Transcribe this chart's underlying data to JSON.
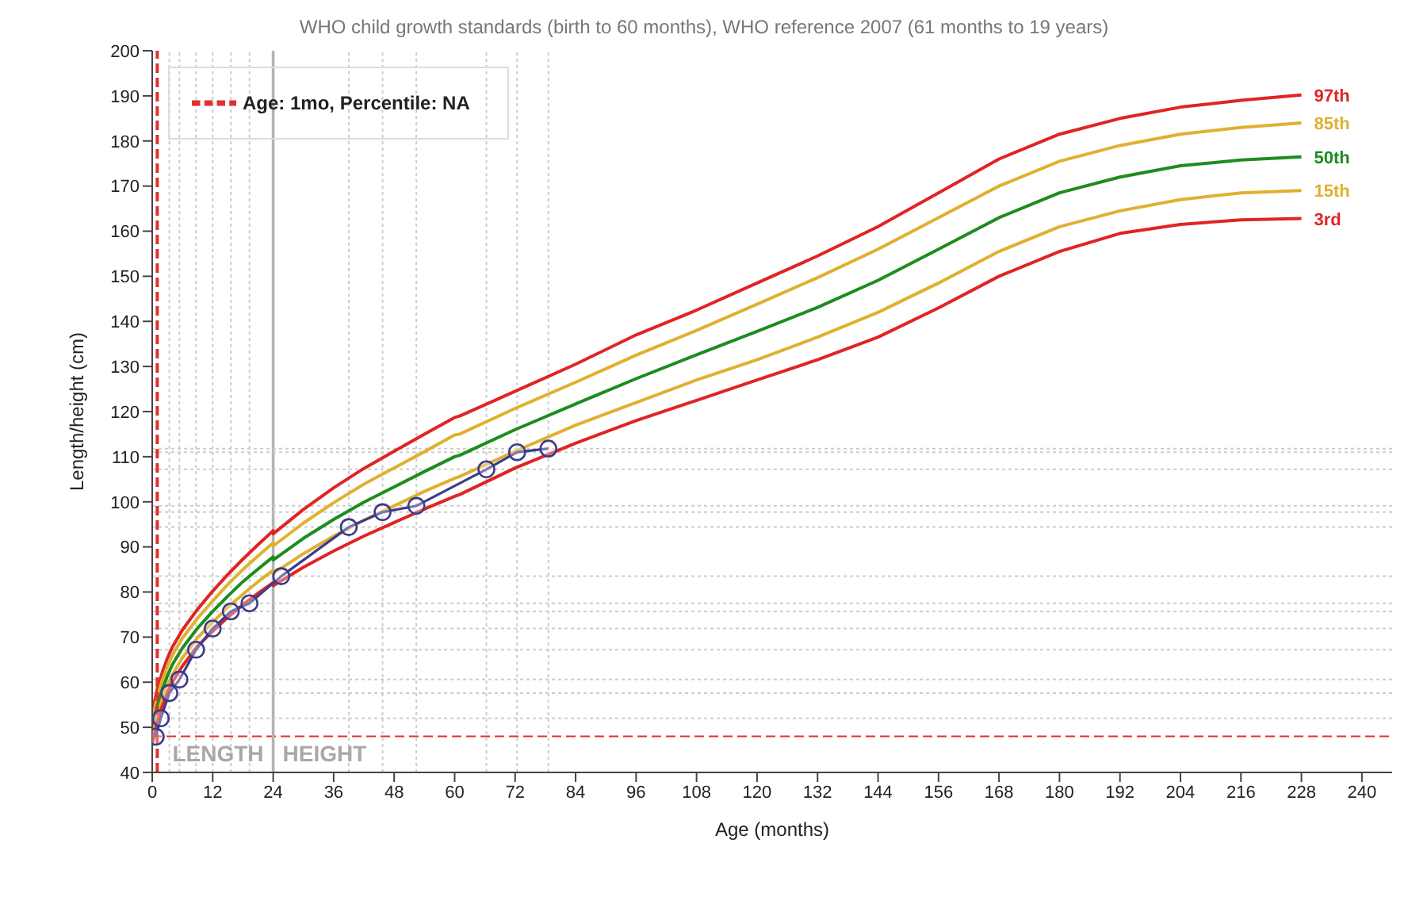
{
  "chart_data": {
    "type": "line",
    "title": "WHO child growth standards (birth to 60 months), WHO reference 2007 (61 months to 19 years)",
    "xlabel": "Age (months)",
    "ylabel": "Length/height (cm)",
    "xlim": [
      0,
      246
    ],
    "xticks": [
      0,
      12,
      24,
      36,
      48,
      60,
      72,
      84,
      96,
      108,
      120,
      132,
      144,
      156,
      168,
      180,
      192,
      204,
      216,
      228,
      240
    ],
    "ylim": [
      40,
      200
    ],
    "yticks": [
      40,
      50,
      60,
      70,
      80,
      90,
      100,
      110,
      120,
      130,
      140,
      150,
      160,
      170,
      180,
      190,
      200
    ],
    "grid": false,
    "legend": "top left",
    "line_style": "solid",
    "x": [
      0,
      1,
      2,
      3,
      4,
      6,
      9,
      12,
      15,
      18,
      21,
      24,
      24,
      30,
      36,
      42,
      48,
      54,
      60,
      61,
      72,
      84,
      96,
      108,
      120,
      132,
      144,
      156,
      168,
      180,
      192,
      204,
      216,
      228
    ],
    "series": [
      {
        "name": "97th",
        "color": "#e02424",
        "marker": "none",
        "values": [
          53.4,
          58.4,
          62.2,
          65.3,
          67.8,
          71.6,
          76.2,
          80.2,
          83.9,
          87.3,
          90.5,
          93.6,
          92.9,
          98.3,
          103.1,
          107.4,
          111.2,
          115.0,
          118.7,
          119.0,
          124.5,
          130.5,
          137.0,
          142.5,
          148.5,
          154.5,
          161.0,
          168.5,
          176.0,
          181.5,
          185.0,
          187.5,
          189.0,
          190.2
        ]
      },
      {
        "name": "85th",
        "color": "#e0b030",
        "marker": "none",
        "values": [
          51.8,
          56.7,
          60.5,
          63.5,
          66.0,
          69.8,
          74.2,
          78.0,
          81.7,
          85.0,
          88.0,
          90.9,
          90.2,
          95.3,
          99.8,
          103.9,
          107.5,
          111.1,
          114.8,
          115.0,
          120.7,
          126.5,
          132.5,
          138.0,
          143.8,
          149.7,
          156.0,
          163.0,
          170.0,
          175.5,
          179.0,
          181.5,
          183.0,
          184.0
        ]
      },
      {
        "name": "50th",
        "color": "#1e8c1e",
        "marker": "none",
        "values": [
          49.9,
          54.7,
          58.4,
          61.4,
          63.9,
          67.6,
          72.0,
          75.7,
          79.1,
          82.3,
          85.1,
          87.8,
          87.1,
          91.9,
          96.1,
          99.9,
          103.3,
          106.7,
          110.0,
          110.3,
          116.0,
          121.7,
          127.3,
          132.6,
          137.8,
          143.1,
          149.1,
          156.0,
          163.0,
          168.5,
          172.0,
          174.5,
          175.8,
          176.5
        ]
      },
      {
        "name": "15th",
        "color": "#e0b030",
        "marker": "none",
        "values": [
          47.9,
          52.7,
          56.4,
          59.3,
          61.7,
          65.4,
          69.9,
          73.3,
          76.6,
          79.5,
          82.3,
          84.8,
          84.1,
          88.5,
          92.4,
          95.9,
          99.1,
          102.3,
          105.2,
          105.6,
          111.2,
          117.0,
          122.0,
          127.0,
          131.5,
          136.5,
          142.0,
          148.5,
          155.5,
          161.0,
          164.5,
          167.0,
          168.5,
          169.0
        ]
      },
      {
        "name": "3rd",
        "color": "#e02424",
        "marker": "none",
        "values": [
          46.3,
          51.1,
          54.7,
          57.6,
          60.0,
          63.6,
          68.0,
          71.3,
          74.4,
          77.2,
          79.7,
          82.1,
          81.4,
          85.5,
          89.1,
          92.4,
          95.4,
          98.4,
          101.2,
          101.6,
          107.5,
          113.0,
          118.0,
          122.5,
          127.0,
          131.5,
          136.5,
          143.0,
          150.0,
          155.5,
          159.5,
          161.5,
          162.5,
          162.8
        ]
      },
      {
        "name": "Age: 1mo, Percentile: NA",
        "color": "#e03030",
        "marker": "none",
        "line_style": "dashed",
        "x": [
          1,
          1
        ],
        "values": [
          40,
          200
        ]
      },
      {
        "color": "#3c3c8c",
        "marker": "circle",
        "x": [
          0.7,
          1.7,
          3.4,
          5.4,
          8.7,
          12.0,
          15.6,
          19.3,
          25.6,
          39.0,
          45.7,
          52.4,
          66.3,
          72.4,
          78.6
        ],
        "values": [
          47.9,
          52.0,
          57.6,
          60.6,
          67.2,
          71.9,
          75.7,
          77.5,
          83.5,
          94.4,
          97.7,
          99.1,
          107.2,
          111.0,
          111.8
        ]
      }
    ],
    "ref_lines": [
      {
        "axis": "y",
        "value": 48,
        "color": "#e03030",
        "line_style": "dashed"
      },
      {
        "axis": "x",
        "value": 24,
        "color": "#b4b4b4",
        "line_style": "solid"
      },
      {
        "axis": "x",
        "value": 3.4,
        "color": "#cccccc",
        "line_style": "dotted"
      },
      {
        "axis": "x",
        "value": 5.4,
        "color": "#cccccc",
        "line_style": "dotted"
      },
      {
        "axis": "x",
        "value": 8.7,
        "color": "#cccccc",
        "line_style": "dotted"
      },
      {
        "axis": "x",
        "value": 12,
        "color": "#cccccc",
        "line_style": "dotted"
      },
      {
        "axis": "x",
        "value": 15.6,
        "color": "#cccccc",
        "line_style": "dotted"
      },
      {
        "axis": "x",
        "value": 19.3,
        "color": "#cccccc",
        "line_style": "dotted"
      },
      {
        "axis": "x",
        "value": 39,
        "color": "#cccccc",
        "line_style": "dotted"
      },
      {
        "axis": "x",
        "value": 45.7,
        "color": "#cccccc",
        "line_style": "dotted"
      },
      {
        "axis": "x",
        "value": 52.4,
        "color": "#cccccc",
        "line_style": "dotted"
      },
      {
        "axis": "x",
        "value": 66.3,
        "color": "#cccccc",
        "line_style": "dotted"
      },
      {
        "axis": "x",
        "value": 72.4,
        "color": "#cccccc",
        "line_style": "dotted"
      },
      {
        "axis": "x",
        "value": 78.6,
        "color": "#cccccc",
        "line_style": "dotted"
      },
      {
        "axis": "y",
        "value": 52,
        "color": "#cccccc",
        "line_style": "dotted"
      },
      {
        "axis": "y",
        "value": 57.6,
        "color": "#cccccc",
        "line_style": "dotted"
      },
      {
        "axis": "y",
        "value": 60.6,
        "color": "#cccccc",
        "line_style": "dotted"
      },
      {
        "axis": "y",
        "value": 67.2,
        "color": "#cccccc",
        "line_style": "dotted"
      },
      {
        "axis": "y",
        "value": 71.9,
        "color": "#cccccc",
        "line_style": "dotted"
      },
      {
        "axis": "y",
        "value": 75.7,
        "color": "#cccccc",
        "line_style": "dotted"
      },
      {
        "axis": "y",
        "value": 77.5,
        "color": "#cccccc",
        "line_style": "dotted"
      },
      {
        "axis": "y",
        "value": 83.5,
        "color": "#cccccc",
        "line_style": "dotted"
      },
      {
        "axis": "y",
        "value": 94.4,
        "color": "#cccccc",
        "line_style": "dotted"
      },
      {
        "axis": "y",
        "value": 97.7,
        "color": "#cccccc",
        "line_style": "dotted"
      },
      {
        "axis": "y",
        "value": 99.1,
        "color": "#cccccc",
        "line_style": "dotted"
      },
      {
        "axis": "y",
        "value": 107.2,
        "color": "#cccccc",
        "line_style": "dotted"
      },
      {
        "axis": "y",
        "value": 111,
        "color": "#cccccc",
        "line_style": "dotted"
      },
      {
        "axis": "y",
        "value": 111.8,
        "color": "#cccccc",
        "line_style": "dotted"
      }
    ],
    "annotations": [
      "LENGTH",
      "HEIGHT"
    ]
  }
}
